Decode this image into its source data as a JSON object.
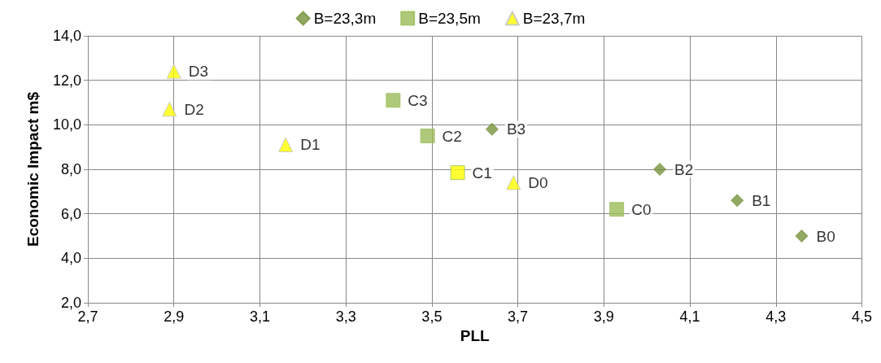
{
  "chart_data": {
    "type": "scatter",
    "xlabel": "PLL",
    "ylabel": "Economic Impact m$",
    "grid": true,
    "legend": "top",
    "xlim": [
      2.7,
      4.5
    ],
    "xticks": [
      {
        "value": 2.7,
        "label": "2,7"
      },
      {
        "value": 2.9,
        "label": "2,9"
      },
      {
        "value": 3.1,
        "label": "3,1"
      },
      {
        "value": 3.3,
        "label": "3,3"
      },
      {
        "value": 3.5,
        "label": "3,5"
      },
      {
        "value": 3.7,
        "label": "3,7"
      },
      {
        "value": 3.9,
        "label": "3,9"
      },
      {
        "value": 4.1,
        "label": "4,1"
      },
      {
        "value": 4.3,
        "label": "4,3"
      },
      {
        "value": 4.5,
        "label": "4,5"
      }
    ],
    "ylim": [
      2,
      14
    ],
    "yticks": [
      {
        "value": 2,
        "label": "2,0"
      },
      {
        "value": 4,
        "label": "4,0"
      },
      {
        "value": 6,
        "label": "6,0"
      },
      {
        "value": 8,
        "label": "8,0"
      },
      {
        "value": 10,
        "label": "10,0"
      },
      {
        "value": 12,
        "label": "12,0"
      },
      {
        "value": 14,
        "label": "14,0"
      }
    ],
    "series": [
      {
        "name": "B=23,3m",
        "color": "#77933c",
        "marker": "diamond",
        "x": [
          4.36,
          4.21,
          4.03,
          3.64
        ],
        "values": [
          5.0,
          6.6,
          8.0,
          9.8
        ]
      },
      {
        "name": "B=23,5m",
        "color": "#9bbb59",
        "colors": [
          "#9bbb59",
          "#ffff00",
          "#9bbb59",
          "#9bbb59"
        ],
        "marker": "square",
        "x": [
          3.93,
          3.56,
          3.49,
          3.41
        ],
        "values": [
          6.2,
          7.85,
          9.5,
          11.1
        ]
      },
      {
        "name": "B=23,7m",
        "color": "#ffff00",
        "marker": "triangle",
        "x": [
          3.69,
          3.16,
          2.89,
          2.9
        ],
        "values": [
          7.4,
          9.1,
          10.7,
          12.4
        ]
      }
    ],
    "annotations": [
      {
        "text": "B0",
        "x": 4.36,
        "y": 5.0
      },
      {
        "text": "B1",
        "x": 4.21,
        "y": 6.6
      },
      {
        "text": "B2",
        "x": 4.03,
        "y": 8.0
      },
      {
        "text": "B3",
        "x": 3.64,
        "y": 9.8
      },
      {
        "text": "C0",
        "x": 3.93,
        "y": 6.2
      },
      {
        "text": "C1",
        "x": 3.56,
        "y": 7.85
      },
      {
        "text": "C2",
        "x": 3.49,
        "y": 9.5
      },
      {
        "text": "C3",
        "x": 3.41,
        "y": 11.1
      },
      {
        "text": "D0",
        "x": 3.69,
        "y": 7.4
      },
      {
        "text": "D1",
        "x": 3.16,
        "y": 9.1
      },
      {
        "text": "D2",
        "x": 2.89,
        "y": 10.7
      },
      {
        "text": "D3",
        "x": 2.9,
        "y": 12.4
      }
    ]
  }
}
